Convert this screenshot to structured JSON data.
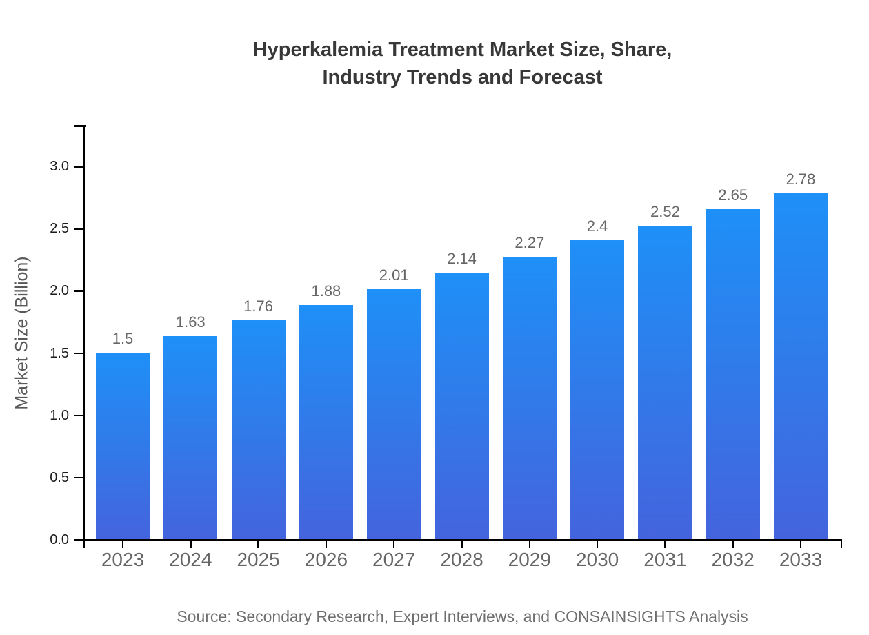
{
  "title": {
    "line1": "Hyperkalemia Treatment Market Size, Share,",
    "line2": "Industry Trends and Forecast"
  },
  "y_axis": {
    "label": "Market Size (Billion)",
    "ticks": [
      "0.0",
      "0.5",
      "1.0",
      "1.5",
      "2.0",
      "2.5",
      "3.0"
    ]
  },
  "source": "Source: Secondary Research, Expert Interviews, and CONSAINSIGHTS Analysis",
  "colors": {
    "bar_gradient_top": "#1e90f7",
    "bar_gradient_bottom": "#4464dd",
    "axis": "#000000",
    "title_text": "#383838",
    "axis_label_text": "#595959",
    "value_label_text": "#666666",
    "source_text": "#6e6e6e"
  },
  "chart_data": {
    "type": "bar",
    "title": "Hyperkalemia Treatment Market Size, Share, Industry Trends and Forecast",
    "categories": [
      "2023",
      "2024",
      "2025",
      "2026",
      "2027",
      "2028",
      "2029",
      "2030",
      "2031",
      "2032",
      "2033"
    ],
    "values": [
      1.5,
      1.63,
      1.76,
      1.88,
      2.01,
      2.14,
      2.27,
      2.4,
      2.52,
      2.65,
      2.78
    ],
    "display_labels": [
      "1.5",
      "1.63",
      "1.76",
      "1.88",
      "2.01",
      "2.14",
      "2.27",
      "2.4",
      "2.52",
      "2.65",
      "2.78"
    ],
    "xlabel": "",
    "ylabel": "Market Size (Billion)",
    "ylim": [
      0,
      3.35
    ],
    "y_tick_step": 0.5,
    "grid": false,
    "legend": "none",
    "bar_gradient": [
      "#1e90f7",
      "#4464dd"
    ]
  }
}
